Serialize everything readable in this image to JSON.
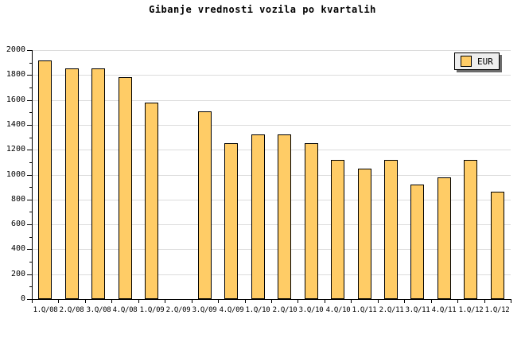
{
  "title": "Gibanje vrednosti vozila po kvartalih",
  "legend": {
    "label": "EUR"
  },
  "colors": {
    "bar_fill": "#FFCC66",
    "bar_border": "#000000",
    "gridline": "#DCDCDC",
    "axis": "#000000",
    "background": "#FFFFFF",
    "legend_bg": "#EEEEEE",
    "legend_shadow": "#6B6B6B",
    "text": "#000000"
  },
  "chart_data": {
    "type": "bar",
    "title": "Gibanje vrednosti vozila po kvartalih",
    "categories": [
      "1.Q/08",
      "2.Q/08",
      "3.Q/08",
      "4.Q/08",
      "1.Q/09",
      "2.Q/09",
      "3.Q/09",
      "4.Q/09",
      "1.Q/10",
      "2.Q/10",
      "3.Q/10",
      "4.Q/10",
      "1.Q/11",
      "2.Q/11",
      "3.Q/11",
      "4.Q/11",
      "1.Q/12",
      "1.Q/12"
    ],
    "series": [
      {
        "name": "EUR",
        "values": [
          1920,
          1850,
          1850,
          1780,
          1580,
          null,
          1510,
          1250,
          1320,
          1320,
          1250,
          1120,
          1050,
          1120,
          920,
          980,
          1120,
          860
        ]
      }
    ],
    "xlabel": "",
    "ylabel": "",
    "ylim": [
      0,
      2000
    ],
    "yticks": [
      0,
      200,
      400,
      600,
      800,
      1000,
      1200,
      1400,
      1600,
      1800,
      2000
    ],
    "ytick_minor_step": 100,
    "grid": "horizontal",
    "legend_entries": [
      "EUR"
    ],
    "legend_position": "top-right"
  }
}
